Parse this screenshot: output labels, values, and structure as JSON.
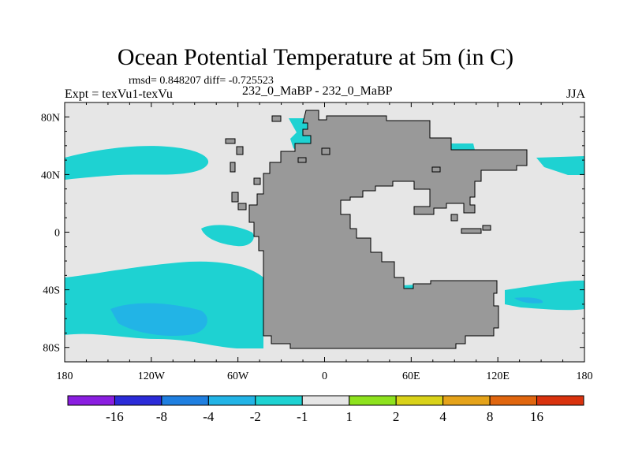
{
  "chart_data": {
    "type": "heatmap",
    "title": "Ocean Potential Temperature at 5m (in C)",
    "stats": "rmsd= 0.848207 diff= -0.725523",
    "left_label": "Expt = texVu1-texVu",
    "center_label": "232_0_MaBP - 232_0_MaBP",
    "right_label": "JJA",
    "x_axis": {
      "range": [
        -180,
        180
      ],
      "ticks": [
        {
          "value": -180,
          "label": "180"
        },
        {
          "value": -120,
          "label": "120W"
        },
        {
          "value": -60,
          "label": "60W"
        },
        {
          "value": 0,
          "label": "0"
        },
        {
          "value": 60,
          "label": "60E"
        },
        {
          "value": 120,
          "label": "120E"
        },
        {
          "value": 180,
          "label": "180"
        }
      ]
    },
    "y_axis": {
      "range": [
        -90,
        90
      ],
      "ticks": [
        {
          "value": 80,
          "label": "80N"
        },
        {
          "value": 40,
          "label": "40N"
        },
        {
          "value": 0,
          "label": "0"
        },
        {
          "value": -40,
          "label": "40S"
        },
        {
          "value": -80,
          "label": "80S"
        }
      ]
    },
    "colorbar": {
      "colors": [
        "#8a1ee0",
        "#2b2bd8",
        "#1f7fe0",
        "#22b4e6",
        "#1ed2d2",
        "#e6e6e6",
        "#8ee21e",
        "#d9d219",
        "#e5a31a",
        "#e0660f",
        "#d9320e"
      ],
      "labels": [
        "-16",
        "-8",
        "-4",
        "-2",
        "-1",
        "1",
        "2",
        "4",
        "8",
        "16"
      ]
    },
    "fields": {
      "background": "#e6e6e6",
      "land": "#999999",
      "anomaly_minus1_to_minus2": "#1ed2d2",
      "anomaly_minus2_to_minus4": "#22b4e6"
    }
  }
}
